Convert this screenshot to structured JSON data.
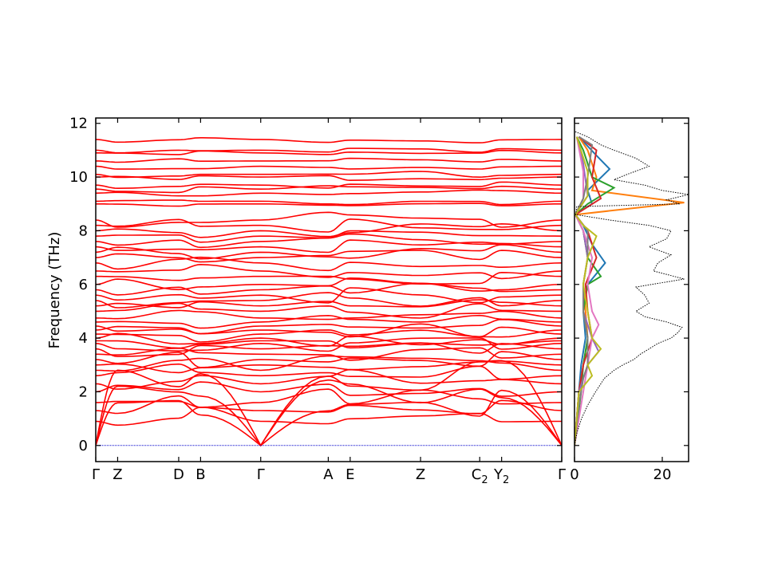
{
  "chart_data": [
    {
      "type": "line",
      "panel": "phonon-band-structure",
      "ylabel": "Frequency (THz)",
      "xlabel": "",
      "ylim": [
        -0.6,
        12.2
      ],
      "yticks": [
        0,
        2,
        4,
        6,
        8,
        10,
        12
      ],
      "grid": false,
      "line_color": "#ff0000",
      "zero_line_color": "#0000cc",
      "k_labels": [
        {
          "label": "Γ",
          "sub": "",
          "x": 0.0
        },
        {
          "label": "Z",
          "sub": "",
          "x": 0.047
        },
        {
          "label": "D",
          "sub": "",
          "x": 0.178
        },
        {
          "label": "B",
          "sub": "",
          "x": 0.225
        },
        {
          "label": "Γ",
          "sub": "",
          "x": 0.354
        },
        {
          "label": "A",
          "sub": "",
          "x": 0.499
        },
        {
          "label": "E",
          "sub": "",
          "x": 0.546
        },
        {
          "label": "Z",
          "sub": "",
          "x": 0.697
        },
        {
          "label": "C",
          "sub": "2",
          "x": 0.824
        },
        {
          "label": "Y",
          "sub": "2",
          "x": 0.871
        },
        {
          "label": "Γ",
          "sub": "",
          "x": 1.0
        }
      ],
      "branches_at_gamma_thz": [
        0,
        0,
        0,
        0.9,
        1.3,
        1.6,
        2.0,
        2.3,
        2.6,
        2.8,
        3.0,
        3.2,
        3.4,
        3.6,
        3.8,
        3.9,
        4.0,
        4.15,
        4.3,
        4.45,
        4.6,
        4.75,
        5.0,
        5.2,
        5.4,
        5.6,
        5.8,
        6.0,
        6.3,
        6.5,
        6.8,
        7.0,
        7.2,
        7.4,
        7.6,
        7.8,
        8.0,
        8.2,
        8.4,
        9.0,
        9.1,
        9.4,
        9.55,
        9.7,
        10.0,
        10.1,
        10.4,
        10.6,
        10.9,
        11.0,
        11.4
      ]
    },
    {
      "type": "line",
      "panel": "phonon-density-of-states",
      "xlabel": "",
      "xlim": [
        0,
        26
      ],
      "xticks": [
        0,
        20
      ],
      "ylim": [
        -0.6,
        12.2
      ],
      "grid": false,
      "total_dos_color": "#000000",
      "total_dos": [
        [
          0.0,
          0.0
        ],
        [
          0.5,
          0.6
        ],
        [
          1.0,
          1.6
        ],
        [
          1.5,
          3.0
        ],
        [
          2.0,
          4.8
        ],
        [
          2.5,
          6.8
        ],
        [
          2.8,
          9.0
        ],
        [
          3.0,
          11.0
        ],
        [
          3.2,
          13.5
        ],
        [
          3.4,
          15.0
        ],
        [
          3.6,
          17.0
        ],
        [
          3.8,
          19.0
        ],
        [
          4.0,
          22.0
        ],
        [
          4.2,
          23.5
        ],
        [
          4.4,
          24.5
        ],
        [
          4.6,
          21.0
        ],
        [
          4.8,
          16.0
        ],
        [
          5.0,
          14.0
        ],
        [
          5.3,
          17.0
        ],
        [
          5.6,
          16.0
        ],
        [
          5.9,
          14.0
        ],
        [
          6.2,
          25.0
        ],
        [
          6.5,
          18.0
        ],
        [
          6.8,
          19.0
        ],
        [
          7.1,
          22.0
        ],
        [
          7.4,
          17.0
        ],
        [
          7.7,
          21.0
        ],
        [
          8.0,
          22.0
        ],
        [
          8.2,
          17.0
        ],
        [
          8.4,
          8.0
        ],
        [
          8.6,
          0.3
        ],
        [
          8.9,
          0.5
        ],
        [
          9.0,
          24.0
        ],
        [
          9.15,
          21.0
        ],
        [
          9.35,
          26.0
        ],
        [
          9.5,
          20.0
        ],
        [
          9.7,
          16.0
        ],
        [
          9.9,
          9.0
        ],
        [
          10.1,
          12.0
        ],
        [
          10.4,
          17.0
        ],
        [
          10.7,
          14.0
        ],
        [
          11.0,
          9.0
        ],
        [
          11.2,
          6.0
        ],
        [
          11.5,
          3.0
        ],
        [
          11.7,
          0.0
        ]
      ],
      "projected_dos": [
        {
          "color": "#1f77b4",
          "points": [
            [
              0,
              0
            ],
            [
              2,
              1.0
            ],
            [
              3,
              1.5
            ],
            [
              4,
              2.5
            ],
            [
              5,
              2.0
            ],
            [
              6,
              3.0
            ],
            [
              6.8,
              7.0
            ],
            [
              7.5,
              4.0
            ],
            [
              8.2,
              2.0
            ],
            [
              8.6,
              0.2
            ],
            [
              9.0,
              4.0
            ],
            [
              9.5,
              3.0
            ],
            [
              10.3,
              8.0
            ],
            [
              10.8,
              5.0
            ],
            [
              11.5,
              1.0
            ]
          ]
        },
        {
          "color": "#ff7f0e",
          "points": [
            [
              0,
              0
            ],
            [
              2,
              1.0
            ],
            [
              3,
              2.0
            ],
            [
              4,
              3.0
            ],
            [
              5,
              2.5
            ],
            [
              6,
              2.0
            ],
            [
              7,
              3.0
            ],
            [
              8,
              2.0
            ],
            [
              8.6,
              0.2
            ],
            [
              9.05,
              25.0
            ],
            [
              9.5,
              4.0
            ],
            [
              10,
              5.0
            ],
            [
              11,
              3.0
            ],
            [
              11.5,
              1.0
            ]
          ]
        },
        {
          "color": "#2ca02c",
          "points": [
            [
              0,
              0
            ],
            [
              2,
              1.5
            ],
            [
              3,
              2.0
            ],
            [
              4,
              3.0
            ],
            [
              5,
              2.0
            ],
            [
              6,
              3.0
            ],
            [
              6.3,
              6.0
            ],
            [
              7,
              3.0
            ],
            [
              8,
              2.0
            ],
            [
              8.6,
              0.2
            ],
            [
              9.0,
              3.0
            ],
            [
              9.6,
              9.0
            ],
            [
              10.0,
              4.0
            ],
            [
              11,
              2.0
            ],
            [
              11.5,
              0.5
            ]
          ]
        },
        {
          "color": "#d62728",
          "points": [
            [
              0,
              0
            ],
            [
              2,
              1.0
            ],
            [
              3,
              2.0
            ],
            [
              4,
              4.0
            ],
            [
              5,
              3.0
            ],
            [
              6,
              2.5
            ],
            [
              7,
              5.0
            ],
            [
              8,
              3.0
            ],
            [
              8.6,
              0.2
            ],
            [
              9.2,
              6.0
            ],
            [
              10,
              4.0
            ],
            [
              11.0,
              5.0
            ],
            [
              11.5,
              1.0
            ]
          ]
        },
        {
          "color": "#9467bd",
          "points": [
            [
              0,
              0
            ],
            [
              2,
              1.0
            ],
            [
              3,
              3.0
            ],
            [
              3.5,
              5.5
            ],
            [
              4,
              4.0
            ],
            [
              5,
              2.0
            ],
            [
              6,
              2.0
            ],
            [
              7,
              3.0
            ],
            [
              8,
              2.0
            ],
            [
              8.6,
              0.2
            ],
            [
              9.3,
              3.0
            ],
            [
              10.5,
              2.0
            ],
            [
              11.5,
              0.5
            ]
          ]
        },
        {
          "color": "#e377c2",
          "points": [
            [
              0,
              0
            ],
            [
              2,
              2.0
            ],
            [
              3,
              3.0
            ],
            [
              4,
              4.0
            ],
            [
              4.5,
              5.5
            ],
            [
              5,
              4.0
            ],
            [
              6,
              3.0
            ],
            [
              7,
              4.0
            ],
            [
              8,
              2.0
            ],
            [
              8.6,
              0.2
            ],
            [
              9.2,
              2.0
            ],
            [
              10.2,
              2.0
            ],
            [
              11.5,
              0.5
            ]
          ]
        },
        {
          "color": "#7f7f7f",
          "points": [
            [
              0,
              0
            ],
            [
              1.5,
              1.0
            ],
            [
              2.5,
              2.0
            ],
            [
              3,
              3.0
            ],
            [
              4,
              3.0
            ],
            [
              5,
              2.0
            ],
            [
              6,
              2.0
            ],
            [
              7,
              3.0
            ],
            [
              8,
              3.0
            ],
            [
              8.6,
              0.2
            ],
            [
              9.2,
              2.0
            ],
            [
              10,
              3.0
            ],
            [
              11.2,
              4.0
            ],
            [
              11.5,
              1.0
            ]
          ]
        },
        {
          "color": "#bcbd22",
          "points": [
            [
              0,
              0
            ],
            [
              1,
              0.5
            ],
            [
              2,
              1.0
            ],
            [
              2.6,
              4.0
            ],
            [
              3,
              3.0
            ],
            [
              3.6,
              6.0
            ],
            [
              4,
              4.0
            ],
            [
              5,
              3.0
            ],
            [
              6,
              2.0
            ],
            [
              7,
              3.0
            ],
            [
              7.8,
              5.0
            ],
            [
              8.2,
              2.0
            ],
            [
              8.6,
              0.2
            ],
            [
              9.3,
              3.0
            ],
            [
              10.2,
              3.0
            ],
            [
              11.5,
              0.5
            ]
          ]
        }
      ]
    }
  ]
}
